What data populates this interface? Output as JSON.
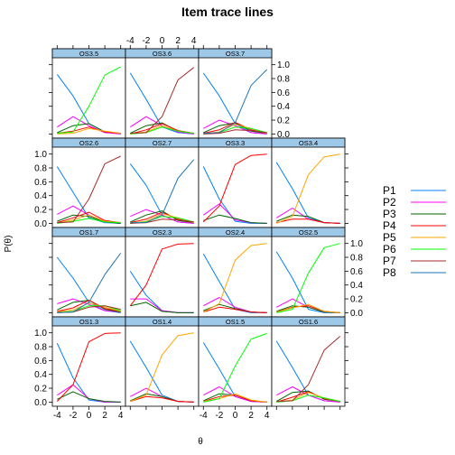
{
  "chart_data": {
    "type": "line",
    "title": "Item trace lines",
    "xlabel": "θ",
    "ylabel": "P(θ)",
    "xlim": [
      -4.6,
      4.6
    ],
    "ylim": [
      -0.06,
      1.1
    ],
    "x_ticks": [
      -4,
      -2,
      0,
      2,
      4
    ],
    "y_ticks": [
      0.0,
      0.2,
      0.4,
      0.6,
      0.8,
      1.0
    ],
    "legend": {
      "position": "right",
      "entries": [
        {
          "label": "P1",
          "color": "#0080ff"
        },
        {
          "label": "P2",
          "color": "#ff00ff"
        },
        {
          "label": "P3",
          "color": "#006400"
        },
        {
          "label": "P4",
          "color": "#ff0000"
        },
        {
          "label": "P5",
          "color": "#ffa500"
        },
        {
          "label": "P6",
          "color": "#00ff00"
        },
        {
          "label": "P7",
          "color": "#a52a2a"
        },
        {
          "label": "P8",
          "color": "#1f77b4"
        }
      ]
    },
    "panels": [
      {
        "name": "OS3.5",
        "top_category": 6,
        "rows": [
          {
            "x": -4,
            "values": [
              0.86,
              0.1,
              0.02,
              0.01,
              0.0,
              0.01
            ]
          },
          {
            "x": -2,
            "values": [
              0.55,
              0.25,
              0.12,
              0.04,
              0.01,
              0.03
            ]
          },
          {
            "x": 0,
            "values": [
              0.15,
              0.12,
              0.15,
              0.1,
              0.08,
              0.4
            ]
          },
          {
            "x": 2,
            "values": [
              0.03,
              0.02,
              0.03,
              0.03,
              0.04,
              0.85
            ]
          },
          {
            "x": 4,
            "values": [
              0.0,
              0.0,
              0.01,
              0.01,
              0.01,
              0.97
            ]
          }
        ]
      },
      {
        "name": "OS3.6",
        "top_category": 7,
        "rows": [
          {
            "x": -4,
            "values": [
              0.88,
              0.1,
              0.01,
              0.0,
              0.0,
              0.0,
              0.01
            ]
          },
          {
            "x": -2,
            "values": [
              0.5,
              0.25,
              0.12,
              0.06,
              0.03,
              0.02,
              0.02
            ]
          },
          {
            "x": 0,
            "values": [
              0.1,
              0.12,
              0.16,
              0.15,
              0.12,
              0.1,
              0.25
            ]
          },
          {
            "x": 2,
            "values": [
              0.02,
              0.03,
              0.04,
              0.05,
              0.04,
              0.04,
              0.78
            ]
          },
          {
            "x": 4,
            "values": [
              0.0,
              0.0,
              0.01,
              0.01,
              0.01,
              0.01,
              0.96
            ]
          }
        ]
      },
      {
        "name": "OS3.7",
        "top_category": 8,
        "rows": [
          {
            "x": -4,
            "values": [
              0.88,
              0.08,
              0.02,
              0.01,
              0.0,
              0.0,
              0.0,
              0.01
            ]
          },
          {
            "x": -2,
            "values": [
              0.55,
              0.2,
              0.12,
              0.06,
              0.03,
              0.02,
              0.01,
              0.02
            ]
          },
          {
            "x": 0,
            "values": [
              0.15,
              0.12,
              0.16,
              0.17,
              0.14,
              0.1,
              0.06,
              0.16
            ]
          },
          {
            "x": 2,
            "values": [
              0.02,
              0.02,
              0.04,
              0.06,
              0.08,
              0.08,
              0.05,
              0.7
            ]
          },
          {
            "x": 4,
            "values": [
              0.0,
              0.0,
              0.01,
              0.01,
              0.01,
              0.02,
              0.02,
              0.93
            ]
          }
        ]
      },
      {
        "name": "OS2.6",
        "top_category": 7,
        "rows": [
          {
            "x": -4,
            "values": [
              0.82,
              0.13,
              0.03,
              0.01,
              0.0,
              0.0,
              0.01
            ]
          },
          {
            "x": -2,
            "values": [
              0.45,
              0.25,
              0.12,
              0.08,
              0.05,
              0.03,
              0.02
            ]
          },
          {
            "x": 0,
            "values": [
              0.08,
              0.12,
              0.1,
              0.16,
              0.12,
              0.07,
              0.35
            ]
          },
          {
            "x": 2,
            "values": [
              0.01,
              0.02,
              0.02,
              0.04,
              0.03,
              0.02,
              0.86
            ]
          },
          {
            "x": 4,
            "values": [
              0.0,
              0.0,
              0.0,
              0.01,
              0.01,
              0.01,
              0.97
            ]
          }
        ]
      },
      {
        "name": "OS2.7",
        "top_category": 8,
        "rows": [
          {
            "x": -4,
            "values": [
              0.86,
              0.1,
              0.02,
              0.01,
              0.0,
              0.0,
              0.0,
              0.01
            ]
          },
          {
            "x": -2,
            "values": [
              0.55,
              0.2,
              0.12,
              0.06,
              0.03,
              0.02,
              0.01,
              0.01
            ]
          },
          {
            "x": 0,
            "values": [
              0.12,
              0.12,
              0.18,
              0.16,
              0.14,
              0.1,
              0.06,
              0.12
            ]
          },
          {
            "x": 2,
            "values": [
              0.02,
              0.02,
              0.04,
              0.06,
              0.08,
              0.08,
              0.05,
              0.65
            ]
          },
          {
            "x": 4,
            "values": [
              0.0,
              0.0,
              0.01,
              0.01,
              0.01,
              0.02,
              0.02,
              0.92
            ]
          }
        ]
      },
      {
        "name": "OS3.3",
        "top_category": 4,
        "rows": [
          {
            "x": -4,
            "values": [
              0.82,
              0.12,
              0.04,
              0.02
            ]
          },
          {
            "x": -2,
            "values": [
              0.35,
              0.28,
              0.12,
              0.25
            ]
          },
          {
            "x": 0,
            "values": [
              0.03,
              0.05,
              0.07,
              0.85
            ]
          },
          {
            "x": 2,
            "values": [
              0.0,
              0.01,
              0.01,
              0.98
            ]
          },
          {
            "x": 4,
            "values": [
              0.0,
              0.0,
              0.0,
              1.0
            ]
          }
        ]
      },
      {
        "name": "OS3.4",
        "top_category": 5,
        "rows": [
          {
            "x": -4,
            "values": [
              0.88,
              0.08,
              0.03,
              0.01,
              0.0
            ]
          },
          {
            "x": -2,
            "values": [
              0.5,
              0.22,
              0.12,
              0.06,
              0.1
            ]
          },
          {
            "x": 0,
            "values": [
              0.08,
              0.06,
              0.1,
              0.06,
              0.7
            ]
          },
          {
            "x": 2,
            "values": [
              0.01,
              0.01,
              0.01,
              0.01,
              0.96
            ]
          },
          {
            "x": 4,
            "values": [
              0.0,
              0.0,
              0.0,
              0.0,
              1.0
            ]
          }
        ]
      },
      {
        "name": "OS1.7",
        "top_category": 8,
        "rows": [
          {
            "x": -4,
            "values": [
              0.8,
              0.13,
              0.04,
              0.02,
              0.01,
              0.0,
              0.0,
              0.0
            ]
          },
          {
            "x": -2,
            "values": [
              0.5,
              0.2,
              0.15,
              0.07,
              0.04,
              0.02,
              0.01,
              0.01
            ]
          },
          {
            "x": 0,
            "values": [
              0.15,
              0.12,
              0.18,
              0.18,
              0.14,
              0.1,
              0.08,
              0.15
            ]
          },
          {
            "x": 2,
            "values": [
              0.03,
              0.03,
              0.05,
              0.06,
              0.08,
              0.1,
              0.1,
              0.55
            ]
          },
          {
            "x": 4,
            "values": [
              0.0,
              0.01,
              0.01,
              0.02,
              0.02,
              0.03,
              0.05,
              0.86
            ]
          }
        ]
      },
      {
        "name": "OS2.3",
        "top_category": 4,
        "rows": [
          {
            "x": -4,
            "values": [
              0.6,
              0.2,
              0.1,
              0.1
            ]
          },
          {
            "x": -2,
            "values": [
              0.25,
              0.2,
              0.15,
              0.4
            ]
          },
          {
            "x": 0,
            "values": [
              0.03,
              0.03,
              0.02,
              0.92
            ]
          },
          {
            "x": 2,
            "values": [
              0.0,
              0.0,
              0.0,
              0.99
            ]
          },
          {
            "x": 4,
            "values": [
              0.0,
              0.0,
              0.0,
              1.0
            ]
          }
        ]
      },
      {
        "name": "OS2.4",
        "top_category": 5,
        "rows": [
          {
            "x": -4,
            "values": [
              0.85,
              0.1,
              0.03,
              0.01,
              0.01
            ]
          },
          {
            "x": -2,
            "values": [
              0.45,
              0.22,
              0.12,
              0.08,
              0.13
            ]
          },
          {
            "x": 0,
            "values": [
              0.05,
              0.08,
              0.06,
              0.05,
              0.76
            ]
          },
          {
            "x": 2,
            "values": [
              0.0,
              0.01,
              0.01,
              0.01,
              0.97
            ]
          },
          {
            "x": 4,
            "values": [
              0.0,
              0.0,
              0.0,
              0.0,
              1.0
            ]
          }
        ]
      },
      {
        "name": "OS2.5",
        "top_category": 6,
        "rows": [
          {
            "x": -4,
            "values": [
              0.88,
              0.08,
              0.02,
              0.01,
              0.01,
              0.0
            ]
          },
          {
            "x": -2,
            "values": [
              0.5,
              0.2,
              0.1,
              0.08,
              0.07,
              0.05
            ]
          },
          {
            "x": 0,
            "values": [
              0.05,
              0.08,
              0.08,
              0.1,
              0.12,
              0.57
            ]
          },
          {
            "x": 2,
            "values": [
              0.0,
              0.01,
              0.01,
              0.02,
              0.02,
              0.94
            ]
          },
          {
            "x": 4,
            "values": [
              0.0,
              0.0,
              0.0,
              0.0,
              0.0,
              1.0
            ]
          }
        ]
      },
      {
        "name": "OS1.3",
        "top_category": 4,
        "rows": [
          {
            "x": -4,
            "values": [
              0.85,
              0.1,
              0.04,
              0.01
            ]
          },
          {
            "x": -2,
            "values": [
              0.35,
              0.25,
              0.15,
              0.25
            ]
          },
          {
            "x": 0,
            "values": [
              0.03,
              0.05,
              0.05,
              0.87
            ]
          },
          {
            "x": 2,
            "values": [
              0.0,
              0.0,
              0.01,
              0.99
            ]
          },
          {
            "x": 4,
            "values": [
              0.0,
              0.0,
              0.0,
              1.0
            ]
          }
        ]
      },
      {
        "name": "OS1.4",
        "top_category": 5,
        "rows": [
          {
            "x": -4,
            "values": [
              0.88,
              0.08,
              0.02,
              0.01,
              0.01
            ]
          },
          {
            "x": -2,
            "values": [
              0.5,
              0.2,
              0.12,
              0.08,
              0.1
            ]
          },
          {
            "x": 0,
            "values": [
              0.1,
              0.08,
              0.08,
              0.06,
              0.68
            ]
          },
          {
            "x": 2,
            "values": [
              0.01,
              0.01,
              0.01,
              0.01,
              0.96
            ]
          },
          {
            "x": 4,
            "values": [
              0.0,
              0.0,
              0.0,
              0.0,
              1.0
            ]
          }
        ]
      },
      {
        "name": "OS1.5",
        "top_category": 6,
        "rows": [
          {
            "x": -4,
            "values": [
              0.86,
              0.1,
              0.02,
              0.01,
              0.01,
              0.0
            ]
          },
          {
            "x": -2,
            "values": [
              0.48,
              0.22,
              0.12,
              0.08,
              0.05,
              0.05
            ]
          },
          {
            "x": 0,
            "values": [
              0.08,
              0.08,
              0.1,
              0.1,
              0.12,
              0.52
            ]
          },
          {
            "x": 2,
            "values": [
              0.01,
              0.01,
              0.02,
              0.02,
              0.03,
              0.91
            ]
          },
          {
            "x": 4,
            "values": [
              0.0,
              0.0,
              0.0,
              0.0,
              0.0,
              0.99
            ]
          }
        ]
      },
      {
        "name": "OS1.6",
        "top_category": 7,
        "rows": [
          {
            "x": -4,
            "values": [
              0.88,
              0.1,
              0.01,
              0.0,
              0.0,
              0.0,
              0.01
            ]
          },
          {
            "x": -2,
            "values": [
              0.5,
              0.22,
              0.14,
              0.07,
              0.03,
              0.02,
              0.02
            ]
          },
          {
            "x": 0,
            "values": [
              0.1,
              0.1,
              0.16,
              0.15,
              0.14,
              0.1,
              0.25
            ]
          },
          {
            "x": 2,
            "values": [
              0.02,
              0.02,
              0.04,
              0.05,
              0.06,
              0.06,
              0.75
            ]
          },
          {
            "x": 4,
            "values": [
              0.0,
              0.0,
              0.01,
              0.01,
              0.01,
              0.01,
              0.95
            ]
          }
        ]
      }
    ]
  }
}
